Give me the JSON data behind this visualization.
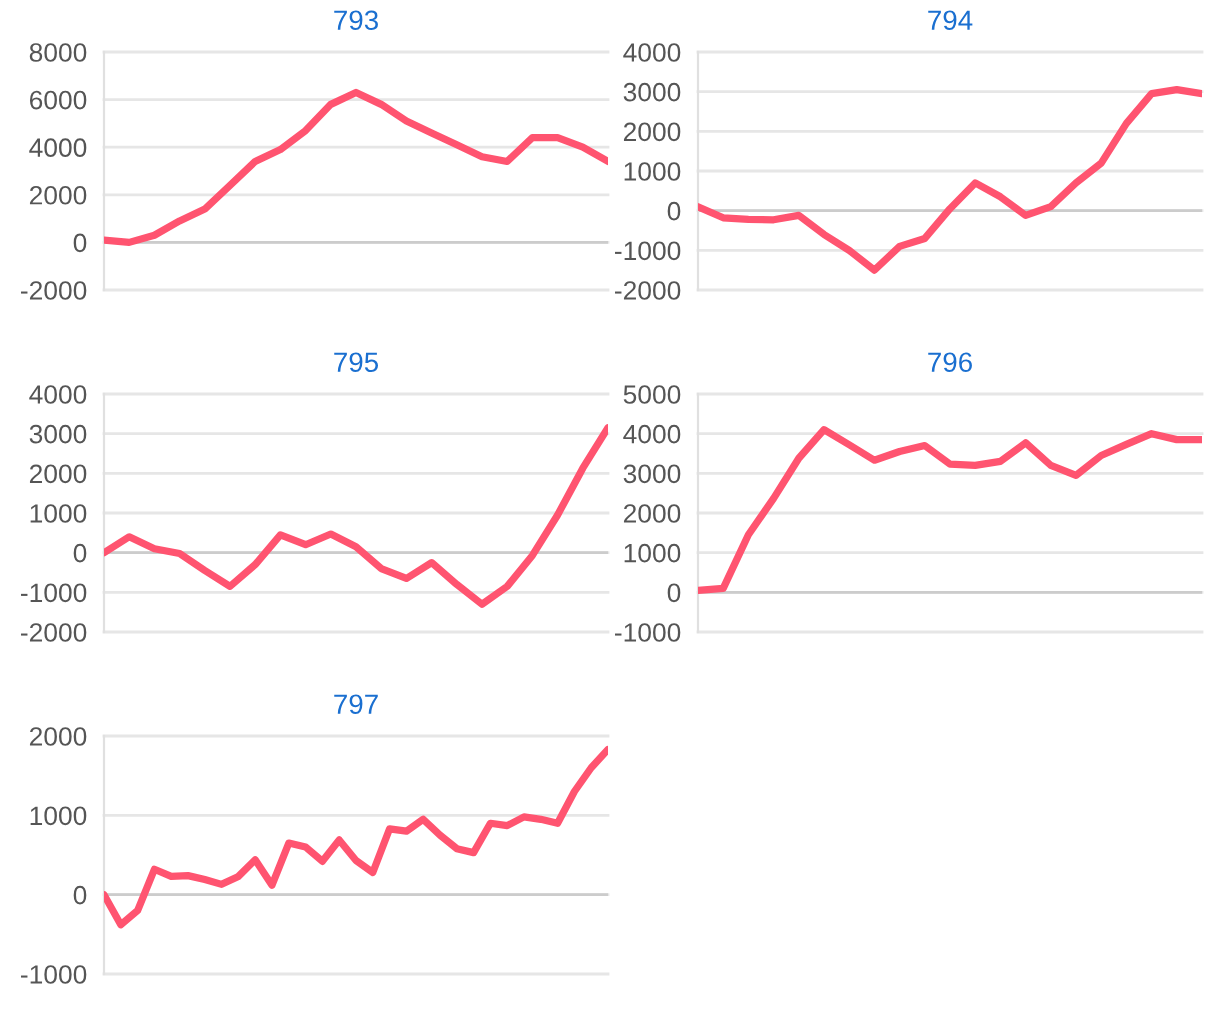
{
  "chart_data": [
    {
      "type": "line",
      "title": "793",
      "categories": [
        null,
        null,
        null,
        null,
        null,
        null,
        null,
        null,
        null,
        null,
        null,
        null,
        null,
        null,
        null,
        null,
        null,
        null,
        null,
        null,
        null
      ],
      "series": [
        {
          "color": "#ff5470",
          "values": [
            100,
            0,
            300,
            900,
            1400,
            2400,
            3400,
            3900,
            4700,
            5800,
            6300,
            5800,
            5100,
            4600,
            4100,
            3600,
            3400,
            4400,
            4400,
            4000,
            3400
          ]
        }
      ],
      "ylim": [
        -2000,
        8000
      ],
      "yticks": [
        -2000,
        0,
        2000,
        4000,
        6000,
        8000
      ],
      "grid": "y",
      "tick_labels": "y",
      "marker": "none",
      "line_style": "solid"
    },
    {
      "type": "line",
      "title": "794",
      "categories": [
        null,
        null,
        null,
        null,
        null,
        null,
        null,
        null,
        null,
        null,
        null,
        null,
        null,
        null,
        null,
        null,
        null,
        null,
        null,
        null,
        null
      ],
      "series": [
        {
          "color": "#ff5470",
          "values": [
            100,
            -180,
            -220,
            -230,
            -120,
            -600,
            -1000,
            -1500,
            -900,
            -700,
            50,
            700,
            350,
            -120,
            100,
            700,
            1200,
            2200,
            2950,
            3050,
            2950
          ]
        }
      ],
      "ylim": [
        -2000,
        4000
      ],
      "yticks": [
        -2000,
        -1000,
        0,
        1000,
        2000,
        3000,
        4000
      ],
      "grid": "y",
      "tick_labels": "y",
      "marker": "none",
      "line_style": "solid"
    },
    {
      "type": "line",
      "title": "795",
      "categories": [
        null,
        null,
        null,
        null,
        null,
        null,
        null,
        null,
        null,
        null,
        null,
        null,
        null,
        null,
        null,
        null,
        null,
        null,
        null,
        null,
        null
      ],
      "series": [
        {
          "color": "#ff5470",
          "values": [
            0,
            400,
            100,
            -20,
            -450,
            -850,
            -300,
            450,
            200,
            470,
            150,
            -400,
            -650,
            -250,
            -800,
            -1300,
            -850,
            -70,
            950,
            2130,
            3150
          ]
        }
      ],
      "ylim": [
        -2000,
        4000
      ],
      "yticks": [
        -2000,
        -1000,
        0,
        1000,
        2000,
        3000,
        4000
      ],
      "grid": "y",
      "tick_labels": "y",
      "marker": "none",
      "line_style": "solid"
    },
    {
      "type": "line",
      "title": "796",
      "categories": [
        null,
        null,
        null,
        null,
        null,
        null,
        null,
        null,
        null,
        null,
        null,
        null,
        null,
        null,
        null,
        null,
        null,
        null,
        null,
        null,
        null
      ],
      "series": [
        {
          "color": "#ff5470",
          "values": [
            50,
            100,
            1450,
            2370,
            3380,
            4100,
            3720,
            3330,
            3550,
            3700,
            3230,
            3200,
            3300,
            3770,
            3200,
            2950,
            3450,
            3730,
            4000,
            3850,
            3850
          ]
        }
      ],
      "ylim": [
        -1000,
        5000
      ],
      "yticks": [
        -1000,
        0,
        1000,
        2000,
        3000,
        4000,
        5000
      ],
      "grid": "y",
      "tick_labels": "y",
      "marker": "none",
      "line_style": "solid"
    },
    {
      "type": "line",
      "title": "797",
      "categories": [
        null,
        null,
        null,
        null,
        null,
        null,
        null,
        null,
        null,
        null,
        null,
        null,
        null,
        null,
        null,
        null,
        null,
        null,
        null,
        null,
        null,
        null,
        null,
        null,
        null,
        null,
        null,
        null,
        null,
        null,
        null
      ],
      "series": [
        {
          "color": "#ff5470",
          "values": [
            0,
            -380,
            -200,
            320,
            230,
            240,
            190,
            130,
            230,
            440,
            120,
            650,
            600,
            420,
            690,
            430,
            280,
            830,
            800,
            950,
            750,
            580,
            530,
            900,
            870,
            980,
            950,
            900,
            1300,
            1600,
            1830
          ]
        }
      ],
      "ylim": [
        -1000,
        2000
      ],
      "yticks": [
        -1000,
        0,
        1000,
        2000
      ],
      "grid": "y",
      "tick_labels": "y",
      "marker": "none",
      "line_style": "solid"
    }
  ]
}
